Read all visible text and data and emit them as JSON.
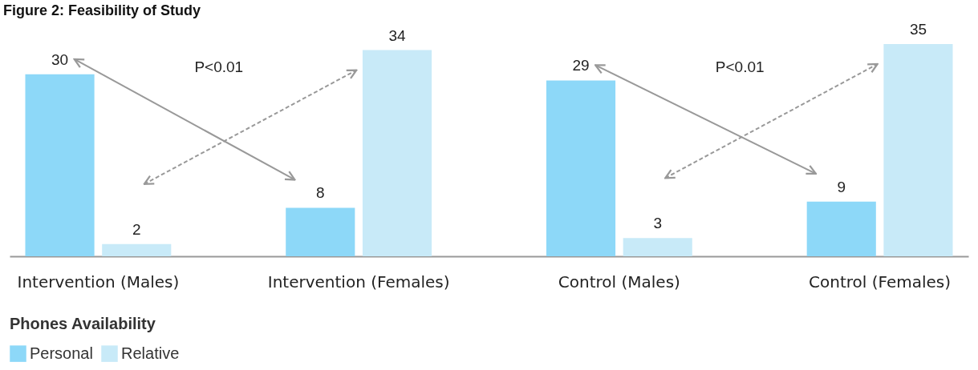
{
  "chart_data": {
    "type": "bar",
    "title": "Figure 2: Feasibility of Study",
    "categories": [
      "Intervention (Males)",
      "Intervention (Females)",
      "Control (Males)",
      "Control (Females)"
    ],
    "series": [
      {
        "name": "Personal",
        "color": "#8dd8f8",
        "values": [
          30,
          8,
          29,
          9
        ]
      },
      {
        "name": "Relative",
        "color": "#c8eaf8",
        "values": [
          2,
          34,
          3,
          35
        ]
      }
    ],
    "data_labels": true,
    "legend": "bottom left",
    "legend_title": "Phones Availability",
    "annotations": [
      "P<0.01",
      "P<0.01"
    ]
  }
}
